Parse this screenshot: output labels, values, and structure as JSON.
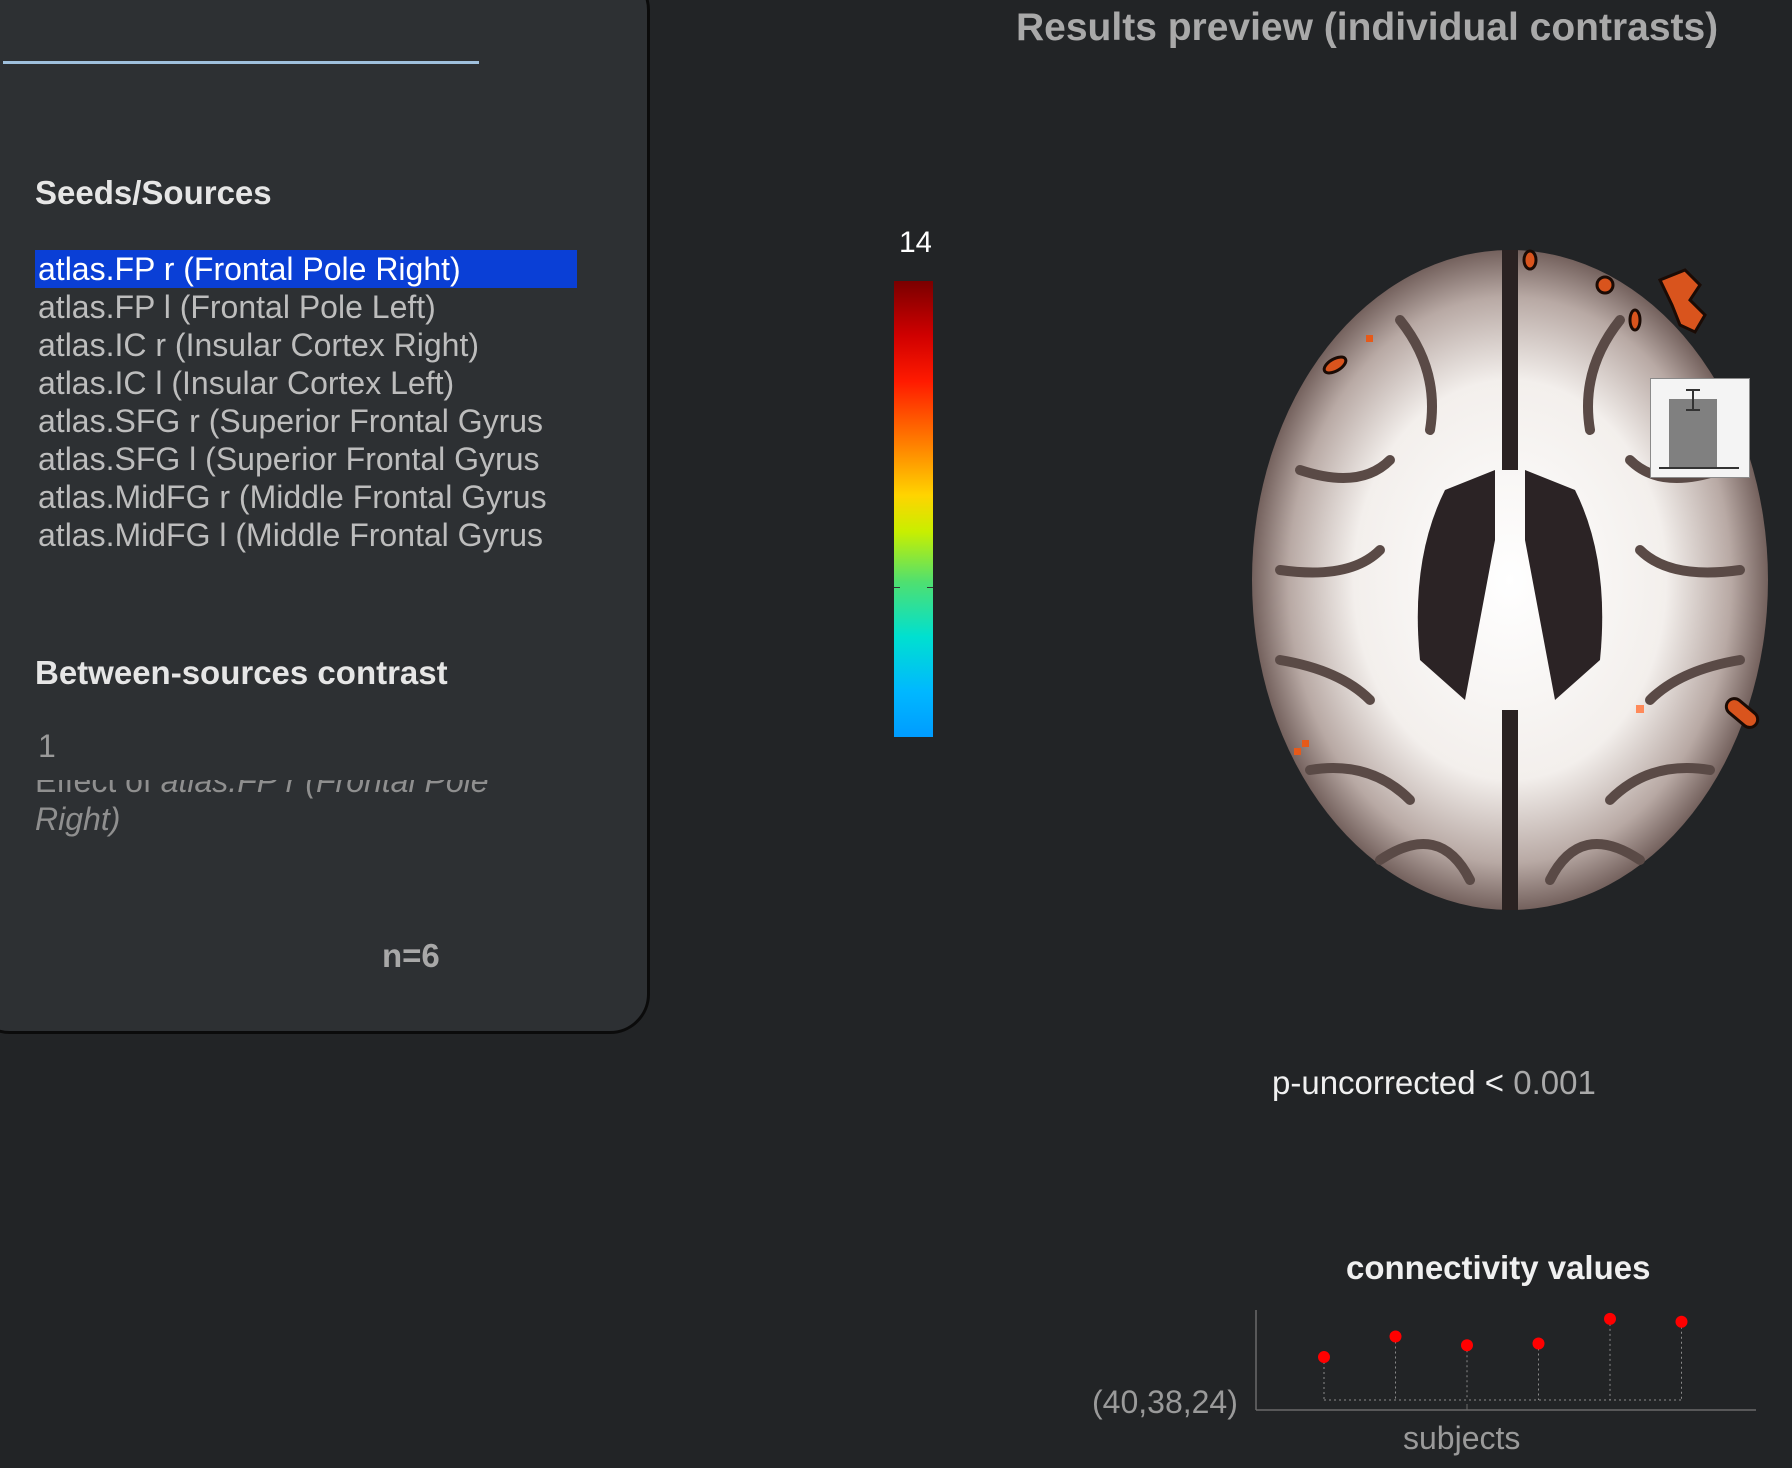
{
  "left_panel": {
    "seeds_title": "Seeds/Sources",
    "seeds": [
      "atlas.FP r (Frontal Pole Right)",
      "atlas.FP l (Frontal Pole Left)",
      "atlas.IC r (Insular Cortex Right)",
      "atlas.IC l (Insular Cortex Left)",
      "atlas.SFG r (Superior Frontal Gyrus",
      "atlas.SFG l (Superior Frontal Gyrus",
      "atlas.MidFG r (Middle Frontal Gyrus",
      "atlas.MidFG l (Middle Frontal Gyrus"
    ],
    "selected_index": 0,
    "contrast_title": "Between-sources contrast",
    "contrast_value": "1",
    "effect_prefix": "Effect of ",
    "effect_name": "atlas.FP r (Frontal Pole Right)",
    "n_label": "n=6"
  },
  "results": {
    "title": "Results preview (individual contrasts)",
    "colorbar_top_label": "14",
    "threshold_label": "p-uncorrected < ",
    "threshold_value": "0.001"
  },
  "chart_data": {
    "type": "scatter",
    "title": "connectivity values",
    "xlabel": "subjects",
    "ylabel": "(40,38,24)",
    "x": [
      1,
      2,
      3,
      4,
      5,
      6
    ],
    "values": [
      0.3,
      0.65,
      0.5,
      0.53,
      0.95,
      0.9
    ],
    "ylim": [
      -0.6,
      1.1
    ],
    "grid": false
  },
  "colors": {
    "accent_selected": "#0a3fd6",
    "marker": "#ff0000",
    "background": "#222426"
  }
}
